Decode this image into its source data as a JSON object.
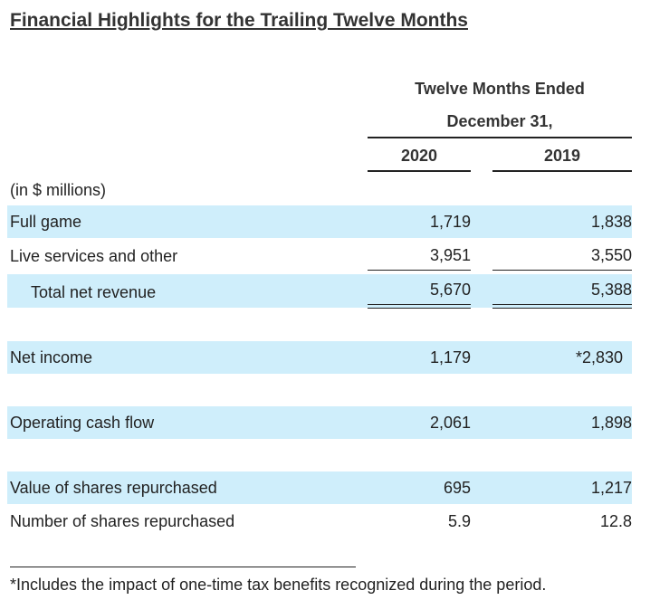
{
  "title": "Financial Highlights for the Trailing Twelve Months",
  "header": {
    "line1": "Twelve Months Ended",
    "line2": "December 31,",
    "years": [
      "2020",
      "2019"
    ]
  },
  "units": "(in $ millions)",
  "rows": [
    {
      "label": "Full game",
      "v2020": "1,719",
      "v2019": "1,838"
    },
    {
      "label": "Live services and other",
      "v2020": "3,951",
      "v2019": "3,550"
    },
    {
      "label": "Total net revenue",
      "v2020": "5,670",
      "v2019": "5,388"
    },
    {
      "label": "Net income",
      "v2020": "1,179",
      "v2019": "*2,830"
    },
    {
      "label": "Operating cash flow",
      "v2020": "2,061",
      "v2019": "1,898"
    },
    {
      "label": "Value of shares repurchased",
      "v2020": "695",
      "v2019": "1,217"
    },
    {
      "label": "Number of shares repurchased",
      "v2020": "5.9",
      "v2019": "12.8"
    }
  ],
  "footnote": "*Includes the impact of one-time tax benefits recognized during the period.",
  "colors": {
    "band": "#cfeefb",
    "text": "#222222"
  }
}
